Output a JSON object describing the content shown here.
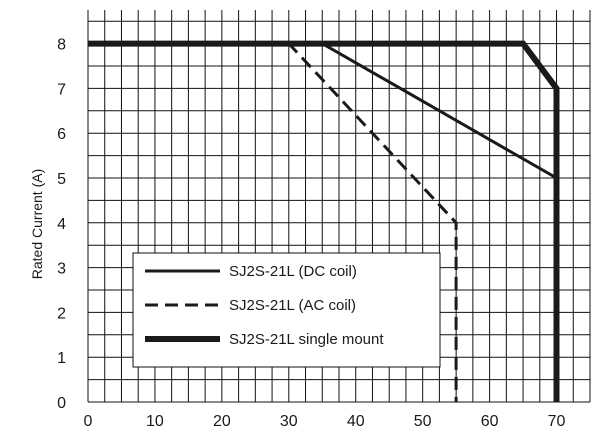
{
  "chart_data": {
    "type": "line",
    "title": "",
    "xlabel": "",
    "ylabel": "Rated Current (A)",
    "xlim": [
      0,
      75
    ],
    "ylim": [
      0,
      8.75
    ],
    "x_ticks": [
      0,
      10,
      20,
      30,
      40,
      50,
      60,
      70
    ],
    "y_ticks": [
      0,
      1,
      2,
      3,
      4,
      5,
      6,
      7,
      8
    ],
    "grid": true,
    "legend_position": "lower-left",
    "series": [
      {
        "name": "SJ2S-21L (DC coil)",
        "style": "solid",
        "weight": "medium",
        "color": "#1a1a1a",
        "points": [
          [
            0,
            8
          ],
          [
            35,
            8
          ],
          [
            70,
            5
          ],
          [
            70,
            0
          ]
        ]
      },
      {
        "name": "SJ2S-21L (AC coil)",
        "style": "dashed",
        "weight": "medium",
        "color": "#1a1a1a",
        "points": [
          [
            0,
            8
          ],
          [
            30,
            8
          ],
          [
            55,
            4
          ],
          [
            55,
            0
          ]
        ]
      },
      {
        "name": "SJ2S-21L single mount",
        "style": "solid",
        "weight": "heavy",
        "color": "#1a1a1a",
        "points": [
          [
            0,
            8
          ],
          [
            65,
            8
          ],
          [
            70,
            7
          ],
          [
            70,
            0
          ]
        ]
      }
    ]
  }
}
